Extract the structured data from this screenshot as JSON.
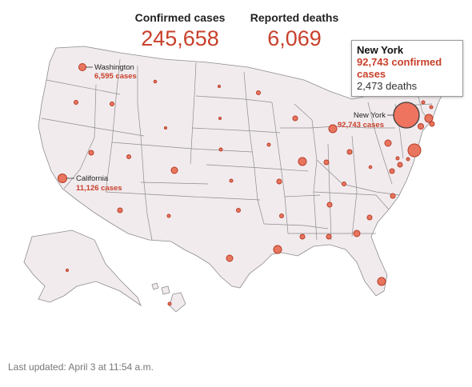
{
  "header": {
    "cases_label": "Confirmed cases",
    "cases_value": "245,658",
    "deaths_label": "Reported deaths",
    "deaths_value": "6,069"
  },
  "tooltip": {
    "state": "New York",
    "cases": "92,743 confirmed cases",
    "deaths": "2,473 deaths"
  },
  "labels": {
    "washington": {
      "name": "Washington",
      "cases": "6,595 cases"
    },
    "california": {
      "name": "California",
      "cases": "11,126 cases"
    },
    "new_york": {
      "name": "New York",
      "cases": "92,743 cases"
    }
  },
  "footer": {
    "updated": "Last updated: April 3 at 11:54 a.m."
  },
  "colors": {
    "accent": "#c8412b",
    "bubble_fill": "#e8755d",
    "land": "#f1ebee"
  }
}
